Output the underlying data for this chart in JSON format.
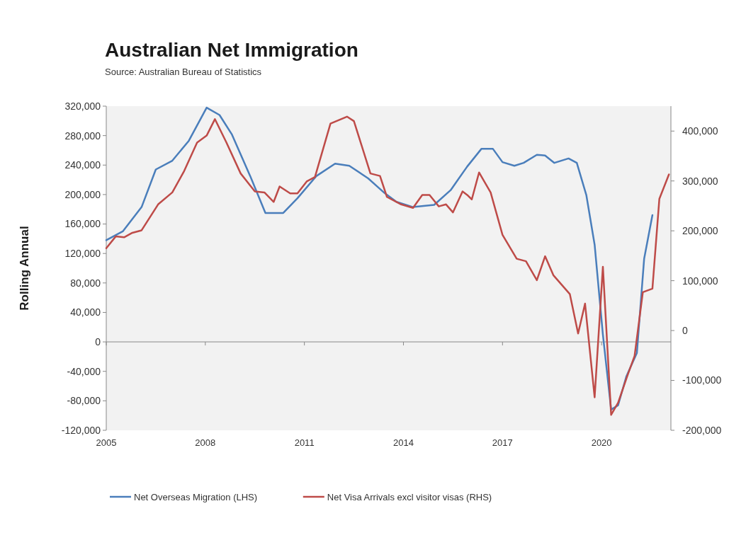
{
  "chart_data": {
    "type": "line",
    "title": "Australian Net Immigration",
    "annotations": [
      "Source: Australian Bureau of Statistics"
    ],
    "ylabel": "Rolling Annual",
    "xlim": [
      2005,
      2022.1
    ],
    "xticks": [
      2005,
      2008,
      2011,
      2014,
      2017,
      2020
    ],
    "ylim": [
      -120000,
      320000
    ],
    "yticks": [
      {
        "value": -120000,
        "label": "-120,000"
      },
      {
        "value": -80000,
        "label": "-80,000"
      },
      {
        "value": -40000,
        "label": "-40,000"
      },
      {
        "value": 0,
        "label": "0"
      },
      {
        "value": 40000,
        "label": "40,000"
      },
      {
        "value": 80000,
        "label": "80,000"
      },
      {
        "value": 120000,
        "label": "120,000"
      },
      {
        "value": 160000,
        "label": "160,000"
      },
      {
        "value": 200000,
        "label": "200,000"
      },
      {
        "value": 240000,
        "label": "240,000"
      },
      {
        "value": 280000,
        "label": "280,000"
      },
      {
        "value": 320000,
        "label": "320,000"
      }
    ],
    "y2lim": [
      -200000,
      450000
    ],
    "y2ticks": [
      {
        "value": -200000,
        "label": "-200,000"
      },
      {
        "value": -100000,
        "label": "-100,000"
      },
      {
        "value": 0,
        "label": "0"
      },
      {
        "value": 100000,
        "label": "100,000"
      },
      {
        "value": 200000,
        "label": "200,000"
      },
      {
        "value": 300000,
        "label": "300,000"
      },
      {
        "value": 400000,
        "label": "400,000"
      }
    ],
    "legend": "bottom",
    "marker": "none",
    "line_style": "solid",
    "series": [
      {
        "name": "Net Overseas Migration (LHS)",
        "color": "#4a7ebb",
        "x": [
          2005.0,
          2005.5,
          2006.07,
          2006.5,
          2007.0,
          2007.5,
          2008.04,
          2008.43,
          2008.8,
          2009.36,
          2009.82,
          2010.36,
          2010.79,
          2011.36,
          2011.93,
          2012.36,
          2012.93,
          2013.43,
          2013.79,
          2014.29,
          2014.93,
          2015.43,
          2015.93,
          2016.36,
          2016.71,
          2017.0,
          2017.36,
          2017.64,
          2018.04,
          2018.29,
          2018.57,
          2019.0,
          2019.25,
          2019.54,
          2019.79,
          2020.04,
          2020.29,
          2020.5,
          2020.75,
          2021.07,
          2021.29,
          2021.54
        ],
        "values": [
          138000,
          150000,
          183000,
          234000,
          246000,
          273000,
          318000,
          308000,
          282000,
          225000,
          175000,
          175000,
          195000,
          225000,
          242000,
          239000,
          222000,
          202000,
          190000,
          183000,
          186000,
          206000,
          238000,
          262000,
          262000,
          244000,
          239000,
          243000,
          254000,
          253000,
          243000,
          249000,
          243000,
          199000,
          132000,
          10000,
          -92000,
          -86000,
          -47000,
          -15000,
          113000,
          172000
        ]
      },
      {
        "name": "Net Visa Arrivals excl visitor visas (RHS)",
        "color": "#be4b48",
        "axis": "y2",
        "x": [
          2005.0,
          2005.29,
          2005.54,
          2005.79,
          2006.07,
          2006.57,
          2007.0,
          2007.36,
          2007.75,
          2008.04,
          2008.29,
          2008.64,
          2009.07,
          2009.5,
          2009.79,
          2010.07,
          2010.25,
          2010.57,
          2010.79,
          2011.07,
          2011.32,
          2011.79,
          2012.29,
          2012.5,
          2013.0,
          2013.29,
          2013.5,
          2013.93,
          2014.29,
          2014.57,
          2014.79,
          2015.07,
          2015.29,
          2015.5,
          2015.79,
          2015.93,
          2016.07,
          2016.29,
          2016.64,
          2017.0,
          2017.43,
          2017.71,
          2018.04,
          2018.29,
          2018.54,
          2019.04,
          2019.29,
          2019.5,
          2019.79,
          2020.04,
          2020.29,
          2020.5,
          2020.79,
          2021.0,
          2021.25,
          2021.54,
          2021.75,
          2022.04
        ],
        "values": [
          165000,
          189000,
          187000,
          196000,
          201000,
          253000,
          277000,
          320000,
          377000,
          391000,
          424000,
          377000,
          315000,
          279000,
          277000,
          258000,
          289000,
          275000,
          275000,
          299000,
          308000,
          415000,
          429000,
          420000,
          315000,
          310000,
          268000,
          253000,
          246000,
          272000,
          272000,
          249000,
          253000,
          237000,
          279000,
          272000,
          263000,
          317000,
          277000,
          192000,
          144000,
          139000,
          101000,
          149000,
          111000,
          73000,
          -6000,
          54000,
          -134000,
          128000,
          -169000,
          -145000,
          -89000,
          -51000,
          77000,
          84000,
          264000,
          313000
        ]
      }
    ]
  }
}
